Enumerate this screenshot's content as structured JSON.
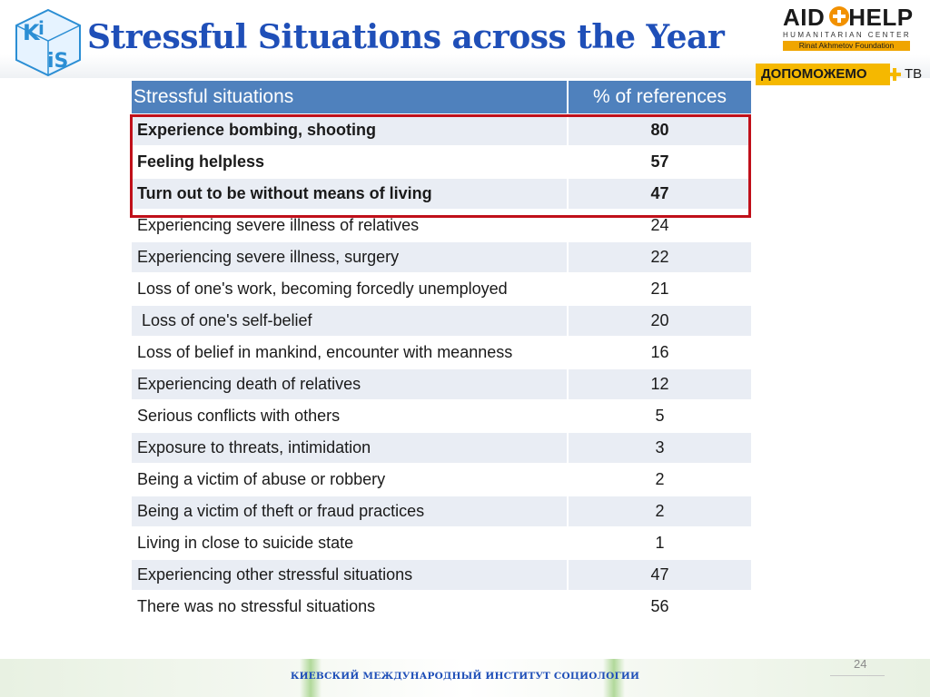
{
  "header": {
    "title": "Stressful Situations across the Year",
    "kiis_logo_text": "KiiS",
    "aid_logo": {
      "word_left": "AID",
      "word_right": "HELP",
      "subtitle": "HUMANITARIAN CENTER",
      "foundation": "Rinat Akhmetov Foundation"
    },
    "promo": {
      "left": "ДОПОМОЖЕМО",
      "right": "ТВ"
    }
  },
  "table": {
    "columns": [
      "Stressful situations",
      "% of references"
    ],
    "rows": [
      {
        "situation": "Experience bombing, shooting",
        "percent": "80"
      },
      {
        "situation": "Feeling helpless",
        "percent": "57"
      },
      {
        "situation": "Turn out to be without means of living",
        "percent": "47"
      },
      {
        "situation": "Experiencing severe illness of relatives",
        "percent": "24"
      },
      {
        "situation": "Experiencing severe illness, surgery",
        "percent": "22"
      },
      {
        "situation": "Loss of one's work, becoming forcedly unemployed",
        "percent": "21"
      },
      {
        "situation": " Loss of one's self-belief",
        "percent": "20"
      },
      {
        "situation": "Loss of belief in mankind, encounter with meanness",
        "percent": "16"
      },
      {
        "situation": "Experiencing death of relatives",
        "percent": "12"
      },
      {
        "situation": "Serious conflicts with others",
        "percent": "5"
      },
      {
        "situation": "Exposure to threats, intimidation",
        "percent": "3"
      },
      {
        "situation": "Being a victim of abuse or robbery",
        "percent": "2"
      },
      {
        "situation": "Being a victim of theft or fraud practices",
        "percent": "2"
      },
      {
        "situation": "Living in close to suicide state",
        "percent": "1"
      },
      {
        "situation": "Experiencing other stressful situations",
        "percent": "47"
      },
      {
        "situation": "There was no stressful situations",
        "percent": "56"
      }
    ]
  },
  "colors": {
    "title": "#1f4fb8",
    "table_header": "#4f81bd",
    "row_alt": "#e9edf4",
    "highlight_frame": "#c0101a",
    "aid_cross": "#f29100",
    "promo": "#f5b800"
  },
  "footer": {
    "institute": "КИЕВСКИЙ МЕЖДУНАРОДНЫЙ ИНСТИТУТ СОЦИОЛОГИИ",
    "page_number": "24"
  }
}
